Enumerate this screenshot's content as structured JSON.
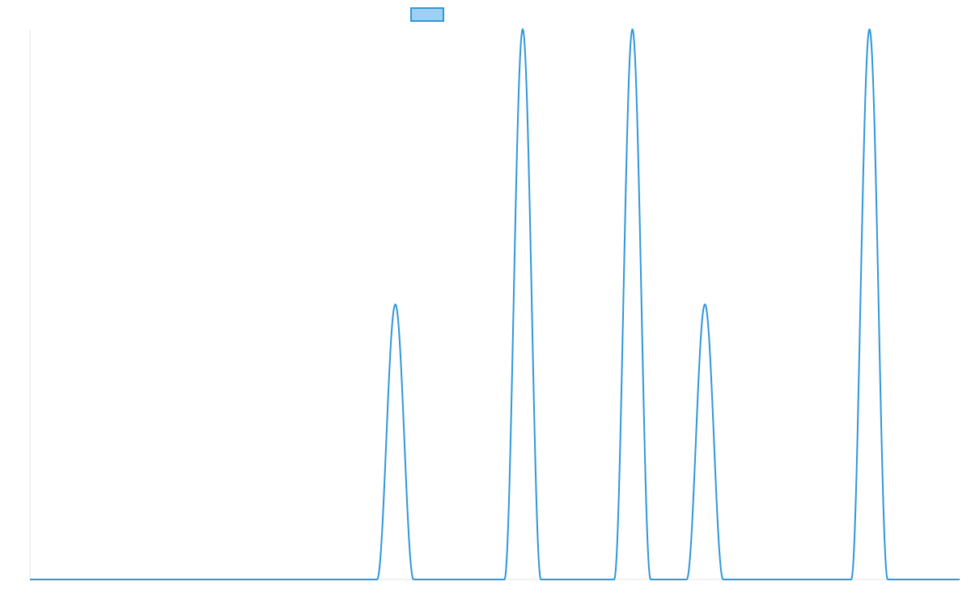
{
  "chart_data": {
    "type": "line",
    "title": "",
    "xlabel": "",
    "ylabel": "",
    "legend_position": "top-center",
    "grid": false,
    "xlim": [
      0,
      1
    ],
    "ylim": [
      0,
      1
    ],
    "series": [
      {
        "name": "",
        "color": "#2f97db",
        "fill_color": "#9dd0f3",
        "peaks": [
          {
            "x": 0.393,
            "y": 0.5,
            "half_width": 0.0196
          },
          {
            "x": 0.53,
            "y": 1.0,
            "half_width": 0.0196
          },
          {
            "x": 0.648,
            "y": 1.0,
            "half_width": 0.0196
          },
          {
            "x": 0.726,
            "y": 0.5,
            "half_width": 0.0196
          },
          {
            "x": 0.903,
            "y": 1.0,
            "half_width": 0.0196
          }
        ]
      }
    ]
  }
}
